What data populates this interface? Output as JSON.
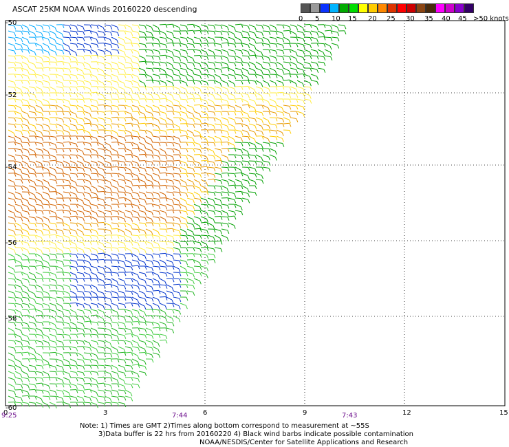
{
  "title": "ASCAT 25KM NOAA Winds 20160220 descending",
  "colorbar": {
    "colors": [
      "#555555",
      "#999999",
      "#0a32ff",
      "#00b4ff",
      "#00aa00",
      "#00dd00",
      "#ffff00",
      "#ffcc00",
      "#ff8800",
      "#dd3300",
      "#ff0000",
      "#cc0000",
      "#8b4513",
      "#4a2a0a",
      "#ff00ff",
      "#cc00cc",
      "#8800cc",
      "#330066"
    ],
    "labels": [
      "0",
      "5",
      "10",
      "15",
      "20",
      "25",
      "30",
      "35",
      "40",
      "45",
      ">50 knots"
    ]
  },
  "axes": {
    "x_ticks": [
      "0",
      "3",
      "6",
      "9",
      "12",
      "15"
    ],
    "y_ticks": [
      "-50",
      "-52",
      "-54",
      "-56",
      "-58",
      "-60"
    ],
    "times": [
      "9:25",
      "7:44",
      "7:43"
    ]
  },
  "notes": {
    "line1": "Note: 1) Times are GMT 2)Times along bottom correspond to measurement at ~55S",
    "line2": "3)Data buffer is 22 hrs from 20160220 4) Black wind barbs indicate possible contamination",
    "line3": "NOAA/NESDIS/Center for Satellite Applications and Research"
  }
}
